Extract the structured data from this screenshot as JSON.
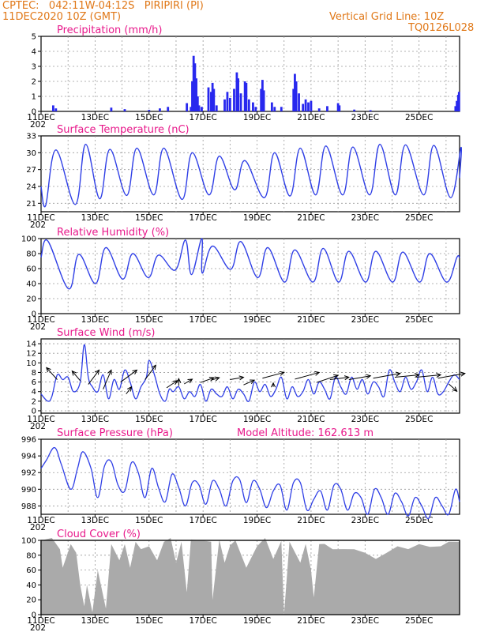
{
  "header": {
    "station": "CPTEC:   042:11W-04:12S   PIRIPIRI (PI)",
    "date": "11DEC2020 10Z (GMT)",
    "grid_note": "Vertical Grid Line: 10Z",
    "code": "TQ0126L028"
  },
  "x_labels": [
    "11DEC",
    "13DEC",
    "15DEC",
    "17DEC",
    "19DEC",
    "21DEC",
    "23DEC",
    "25DEC"
  ],
  "x_year_stub": "202",
  "colors": {
    "header": "#e07818",
    "title": "#e8198b",
    "line": "#2f3fe6",
    "bar": "#2828ee",
    "cloud": "#aaaaaa",
    "arrow": "#000000"
  },
  "chart_data": [
    {
      "id": "precip",
      "type": "bar",
      "title": "Precipitation (mm/h)",
      "ylim": [
        0,
        5
      ],
      "yticks": [
        0,
        1,
        2,
        3,
        4,
        5
      ],
      "x_days_start": 0,
      "x_days_end": 15.5,
      "values": [
        [
          0.45,
          0.4
        ],
        [
          0.55,
          0.2
        ],
        [
          2.6,
          0.25
        ],
        [
          3.1,
          0.15
        ],
        [
          4.0,
          0.1
        ],
        [
          4.4,
          0.2
        ],
        [
          4.7,
          0.3
        ],
        [
          5.4,
          0.55
        ],
        [
          5.55,
          0.3
        ],
        [
          5.6,
          2.0
        ],
        [
          5.65,
          3.7
        ],
        [
          5.7,
          3.2
        ],
        [
          5.75,
          2.2
        ],
        [
          5.8,
          1.0
        ],
        [
          5.85,
          0.4
        ],
        [
          5.95,
          0.3
        ],
        [
          6.2,
          1.6
        ],
        [
          6.3,
          1.3
        ],
        [
          6.35,
          1.9
        ],
        [
          6.4,
          1.5
        ],
        [
          6.5,
          0.4
        ],
        [
          6.8,
          0.8
        ],
        [
          6.9,
          1.3
        ],
        [
          7.0,
          0.9
        ],
        [
          7.15,
          1.5
        ],
        [
          7.25,
          2.6
        ],
        [
          7.3,
          2.2
        ],
        [
          7.4,
          1.2
        ],
        [
          7.55,
          2.0
        ],
        [
          7.6,
          1.9
        ],
        [
          7.7,
          0.8
        ],
        [
          7.85,
          0.6
        ],
        [
          7.95,
          0.3
        ],
        [
          8.15,
          1.5
        ],
        [
          8.2,
          2.1
        ],
        [
          8.25,
          1.4
        ],
        [
          8.55,
          0.6
        ],
        [
          8.65,
          0.3
        ],
        [
          8.9,
          0.3
        ],
        [
          9.35,
          1.5
        ],
        [
          9.4,
          2.5
        ],
        [
          9.45,
          2.0
        ],
        [
          9.55,
          1.2
        ],
        [
          9.7,
          0.5
        ],
        [
          9.8,
          0.8
        ],
        [
          9.9,
          0.6
        ],
        [
          10.0,
          0.7
        ],
        [
          10.3,
          0.2
        ],
        [
          10.6,
          0.35
        ],
        [
          11.0,
          0.55
        ],
        [
          11.05,
          0.4
        ],
        [
          11.6,
          0.12
        ],
        [
          12.2,
          0.08
        ],
        [
          15.35,
          0.35
        ],
        [
          15.4,
          0.7
        ],
        [
          15.45,
          1.1
        ],
        [
          15.48,
          1.3
        ]
      ]
    },
    {
      "id": "temp",
      "type": "line",
      "title": "Surface Temperature (nC)",
      "ylim": [
        19.5,
        33
      ],
      "yticks": [
        21,
        24,
        27,
        30,
        33
      ],
      "series": [
        {
          "peak_x": [
            0.55,
            1.65,
            2.55,
            3.55,
            4.55,
            5.6,
            6.6,
            7.55,
            8.65,
            9.6,
            10.55,
            11.55,
            12.55,
            13.5,
            14.55,
            15.55
          ],
          "peak_y": [
            30.5,
            31.5,
            30.6,
            30.8,
            30.8,
            30.0,
            29.4,
            28.6,
            30.0,
            30.8,
            31.2,
            31.0,
            31.5,
            31.4,
            31.3,
            30.9
          ],
          "min_y": [
            20.6,
            20.8,
            21.8,
            22.4,
            22.5,
            21.7,
            22.5,
            23.4,
            22.0,
            22.3,
            22.5,
            22.5,
            22.5,
            22.5,
            22.5,
            22.0
          ],
          "start_y": 24.0,
          "end_y": 25.5
        }
      ]
    },
    {
      "id": "rh",
      "type": "line",
      "title": "Relative Humidity (%)",
      "ylim": [
        0,
        100
      ],
      "yticks": [
        0,
        20,
        40,
        60,
        80,
        100
      ],
      "series": [
        {
          "peak_x": [
            0.25,
            1.4,
            2.4,
            3.4,
            4.35,
            5.35,
            5.95,
            6.35,
            7.4,
            8.4,
            9.4,
            10.45,
            11.4,
            12.4,
            13.4,
            14.4,
            15.4
          ],
          "peak_y": [
            97,
            79,
            88,
            80,
            78,
            98,
            100,
            90,
            96,
            88,
            85,
            87,
            83,
            83,
            82,
            80,
            75
          ],
          "min_y": [
            40,
            33,
            40,
            46,
            48,
            58,
            52,
            54,
            59,
            48,
            42,
            42,
            42,
            42,
            42,
            42,
            42
          ],
          "start_y": 75,
          "end_y": 74
        }
      ]
    },
    {
      "id": "wind",
      "type": "line",
      "title": "Surface Wind (m/s)",
      "ylim": [
        -0.5,
        15
      ],
      "yticks": [
        0,
        2,
        4,
        6,
        8,
        10,
        12,
        14
      ],
      "series": [
        {
          "x": [
            0,
            0.25,
            0.4,
            0.6,
            0.8,
            1.0,
            1.2,
            1.45,
            1.6,
            1.75,
            1.9,
            2.1,
            2.3,
            2.5,
            2.7,
            2.9,
            3.1,
            3.3,
            3.5,
            3.7,
            3.9,
            4.0,
            4.2,
            4.4,
            4.6,
            4.75,
            4.9,
            5.1,
            5.3,
            5.5,
            5.7,
            5.9,
            6.1,
            6.3,
            6.5,
            6.7,
            6.9,
            7.1,
            7.3,
            7.5,
            7.7,
            7.9,
            8.1,
            8.3,
            8.5,
            8.7,
            8.9,
            9.1,
            9.3,
            9.5,
            9.7,
            9.9,
            10.1,
            10.3,
            10.5,
            10.7,
            10.9,
            11.1,
            11.3,
            11.5,
            11.7,
            11.9,
            12.1,
            12.3,
            12.5,
            12.7,
            12.9,
            13.1,
            13.3,
            13.5,
            13.7,
            13.9,
            14.1,
            14.3,
            14.5,
            14.7,
            14.9,
            15.1,
            15.3,
            15.5
          ],
          "y": [
            3.5,
            2.0,
            3.0,
            7.5,
            6.5,
            7.0,
            4.0,
            6.0,
            13.8,
            7.0,
            5.0,
            4.0,
            7.5,
            2.5,
            6.5,
            4.5,
            8.5,
            6.0,
            2.5,
            5.0,
            7.0,
            10.5,
            7.5,
            3.5,
            2.0,
            4.5,
            4.0,
            5.0,
            2.5,
            4.0,
            3.0,
            5.5,
            2.0,
            4.5,
            3.5,
            3.0,
            5.0,
            2.5,
            4.5,
            3.5,
            2.0,
            6.0,
            4.0,
            5.5,
            3.0,
            4.5,
            7.0,
            2.5,
            5.0,
            3.0,
            4.0,
            6.5,
            3.5,
            6.0,
            4.5,
            2.5,
            7.0,
            5.0,
            3.5,
            7.0,
            4.5,
            6.5,
            3.5,
            6.0,
            5.0,
            3.0,
            8.5,
            6.0,
            4.0,
            7.0,
            4.5,
            6.0,
            8.5,
            4.0,
            7.0,
            3.5,
            4.0,
            6.0,
            7.5,
            6.5
          ]
        }
      ],
      "arrows": [
        [
          0.6,
          6.5,
          -0.4,
          2.5
        ],
        [
          1.45,
          6.3,
          -0.3,
          2.0
        ],
        [
          1.75,
          5.5,
          0.4,
          3.0
        ],
        [
          2.3,
          4.5,
          0.3,
          4.0
        ],
        [
          2.95,
          6.0,
          0.6,
          2.5
        ],
        [
          3.15,
          3.5,
          0.2,
          1.5
        ],
        [
          3.85,
          6.5,
          0.4,
          3.0
        ],
        [
          4.65,
          4.8,
          0.4,
          1.5
        ],
        [
          5.1,
          5.2,
          0.0,
          1.5
        ],
        [
          5.3,
          5.6,
          0.3,
          1.0
        ],
        [
          5.9,
          5.9,
          0.5,
          1.0
        ],
        [
          6.3,
          6.4,
          0.3,
          0.5
        ],
        [
          7.0,
          6.5,
          0.5,
          0.5
        ],
        [
          7.5,
          5.4,
          0.4,
          1.0
        ],
        [
          8.2,
          6.8,
          0.8,
          1.2
        ],
        [
          8.6,
          5.0,
          0.0,
          0.8
        ],
        [
          9.4,
          6.6,
          0.9,
          1.4
        ],
        [
          10.2,
          5.9,
          0.8,
          1.5
        ],
        [
          10.7,
          6.5,
          0.7,
          0.5
        ],
        [
          11.4,
          6.5,
          0.8,
          0.8
        ],
        [
          12.3,
          6.8,
          1.0,
          1.0
        ],
        [
          13.1,
          7.0,
          0.9,
          0.5
        ],
        [
          13.9,
          7.0,
          0.9,
          0.5
        ],
        [
          14.7,
          6.8,
          1.0,
          1.0
        ],
        [
          15.1,
          5.6,
          0.3,
          -1.5
        ]
      ]
    },
    {
      "id": "pressure",
      "type": "line",
      "title": "Surface Pressure (hPa)",
      "subtitle": "Model Altitude: 162.613 m",
      "ylim": [
        987,
        996
      ],
      "yticks": [
        988,
        990,
        992,
        994,
        996
      ],
      "series": [
        {
          "x": [
            0,
            0.2,
            0.5,
            0.75,
            1.1,
            1.35,
            1.55,
            1.85,
            2.1,
            2.35,
            2.6,
            2.85,
            3.1,
            3.35,
            3.6,
            3.85,
            4.1,
            4.35,
            4.6,
            4.85,
            5.1,
            5.35,
            5.6,
            5.85,
            6.1,
            6.35,
            6.6,
            6.85,
            7.1,
            7.35,
            7.6,
            7.85,
            8.1,
            8.35,
            8.6,
            8.85,
            9.1,
            9.35,
            9.6,
            9.85,
            10.1,
            10.35,
            10.6,
            10.85,
            11.1,
            11.35,
            11.6,
            11.85,
            12.1,
            12.35,
            12.6,
            12.85,
            13.1,
            13.35,
            13.6,
            13.85,
            14.1,
            14.35,
            14.6,
            14.85,
            15.1,
            15.35,
            15.5
          ],
          "y": [
            992.5,
            993.5,
            995.0,
            993.0,
            990.0,
            992.5,
            994.5,
            992.5,
            989.0,
            992.8,
            993.3,
            990.5,
            989.8,
            993.2,
            992.0,
            989.0,
            992.5,
            990.2,
            988.5,
            991.8,
            990.2,
            988.0,
            990.8,
            990.5,
            988.2,
            991.0,
            990.0,
            988.0,
            991.0,
            991.2,
            988.4,
            991.0,
            990.0,
            987.8,
            989.8,
            990.5,
            987.5,
            990.8,
            990.8,
            987.5,
            988.8,
            989.8,
            987.5,
            990.5,
            990.0,
            987.5,
            989.5,
            989.0,
            987.0,
            990.0,
            989.0,
            987.0,
            989.5,
            988.5,
            986.8,
            989.0,
            988.0,
            986.5,
            989.0,
            988.0,
            987.0,
            990.0,
            988.5
          ]
        }
      ]
    },
    {
      "id": "cloud",
      "type": "bar",
      "title": "Cloud Cover (%)",
      "ylim": [
        0,
        100
      ],
      "yticks": [
        0,
        20,
        40,
        60,
        80,
        100
      ],
      "series": [
        {
          "x": [
            0,
            0.4,
            0.7,
            0.8,
            1.1,
            1.3,
            1.45,
            1.6,
            1.7,
            1.9,
            2.1,
            2.4,
            2.6,
            2.9,
            3.1,
            3.3,
            3.5,
            3.7,
            4.0,
            4.3,
            4.55,
            4.8,
            5.0,
            5.2,
            5.4,
            5.55,
            5.9,
            6.3,
            6.35,
            6.6,
            6.8,
            7.0,
            7.2,
            7.6,
            8.0,
            8.3,
            8.6,
            8.9,
            9.0,
            9.2,
            9.6,
            9.8,
            10.0,
            10.1,
            10.3,
            10.5,
            10.8,
            11.2,
            11.6,
            12.0,
            12.4,
            12.8,
            13.2,
            13.6,
            14.0,
            14.4,
            14.8,
            15.1,
            15.5
          ],
          "y": [
            100,
            100,
            88,
            60,
            95,
            80,
            40,
            8,
            40,
            0,
            60,
            5,
            95,
            70,
            95,
            60,
            98,
            85,
            92,
            70,
            98,
            100,
            70,
            95,
            30,
            98,
            100,
            95,
            20,
            98,
            70,
            90,
            100,
            60,
            92,
            100,
            75,
            96,
            0,
            95,
            70,
            92,
            60,
            20,
            95,
            92,
            88,
            85,
            88,
            80,
            75,
            80,
            92,
            85,
            95,
            88,
            92,
            95,
            98
          ]
        }
      ]
    }
  ]
}
